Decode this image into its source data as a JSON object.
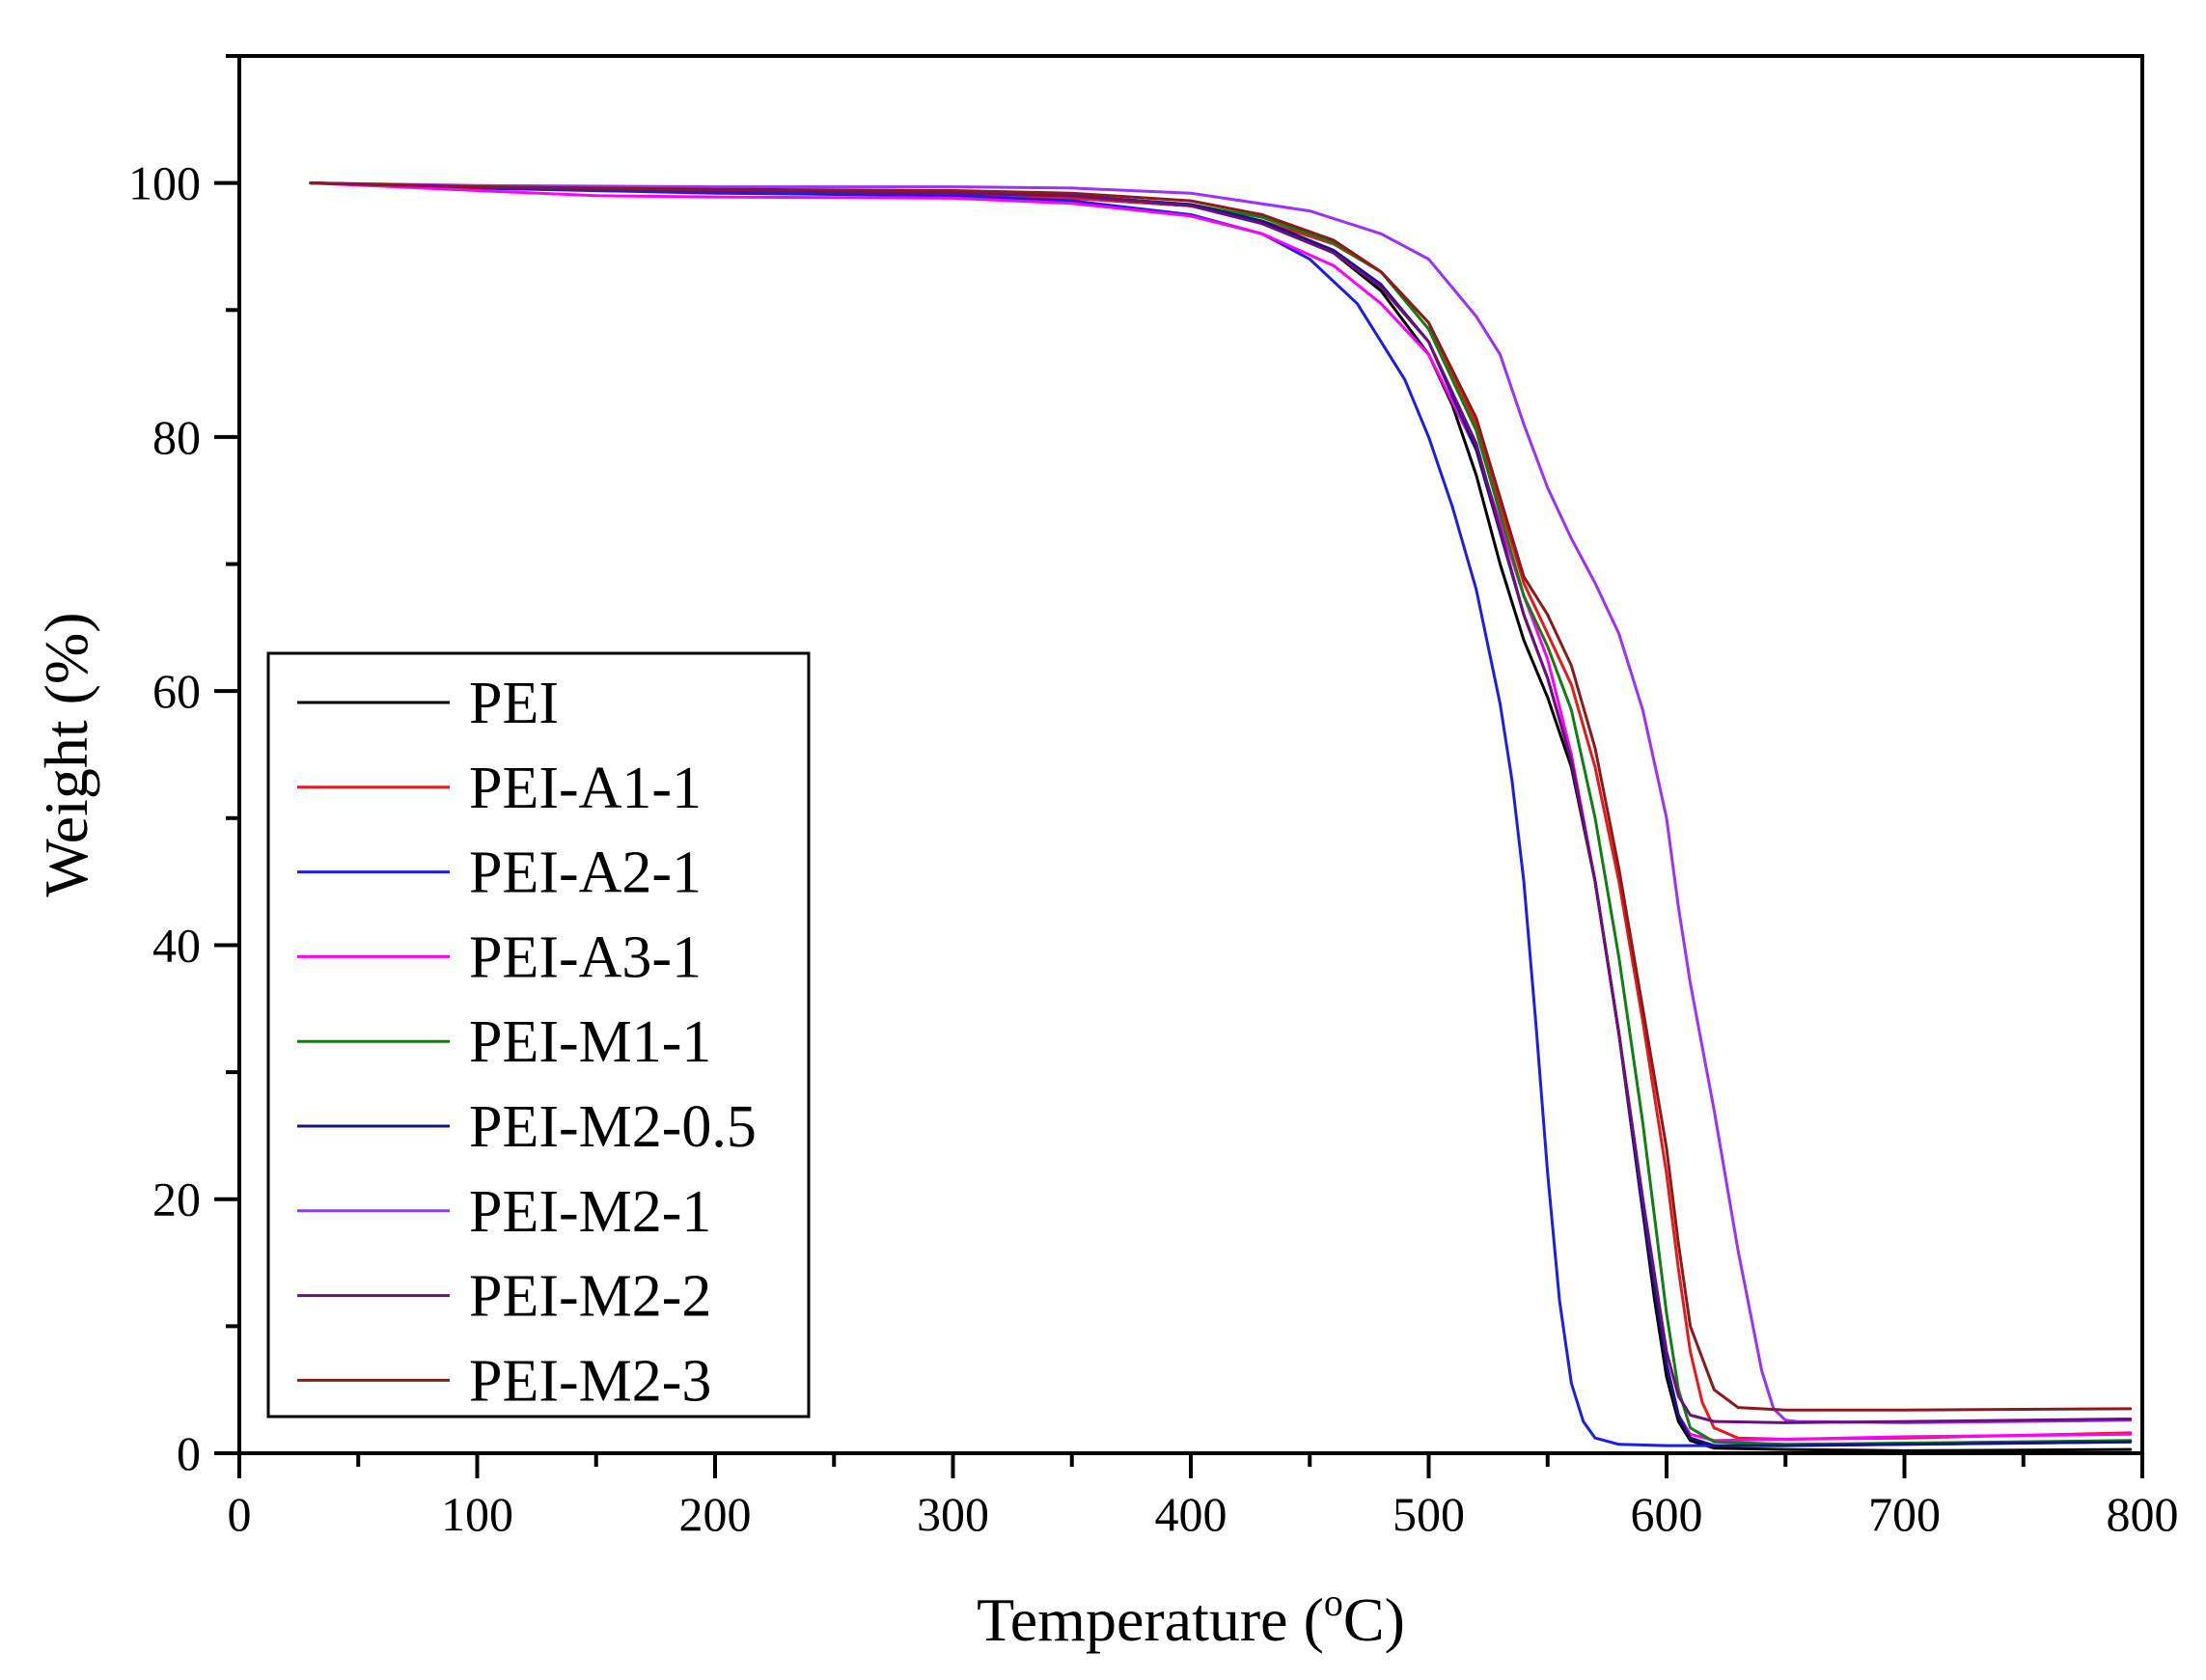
{
  "chart_data": {
    "type": "line",
    "title": "",
    "xlabel": "Temperature (",
    "xlabel_sup": "o",
    "xlabel_unit": "C)",
    "ylabel": "Weight (%)",
    "xlim": [
      0,
      800
    ],
    "ylim": [
      0,
      110
    ],
    "xticks": [
      0,
      100,
      200,
      300,
      400,
      500,
      600,
      700,
      800
    ],
    "xtick_labels": [
      "0",
      "100",
      "200",
      "300",
      "400",
      "500",
      "600",
      "700",
      "800"
    ],
    "yticks": [
      0,
      20,
      40,
      60,
      80,
      100
    ],
    "ytick_labels": [
      "0",
      "20",
      "40",
      "60",
      "80",
      "100"
    ],
    "grid": false,
    "legend_position": "lower-left",
    "series": [
      {
        "name": "PEI",
        "color": "#000000",
        "x": [
          30,
          100,
          200,
          300,
          350,
          400,
          430,
          460,
          480,
          500,
          510,
          520,
          530,
          540,
          550,
          560,
          570,
          580,
          590,
          595,
          600,
          605,
          610,
          620,
          650,
          700,
          795
        ],
        "y": [
          100,
          99.7,
          99.3,
          99.0,
          98.8,
          98.2,
          96.9,
          94.5,
          91.5,
          86.5,
          82.5,
          77.0,
          70.0,
          64.0,
          59.5,
          54.0,
          45.0,
          33.0,
          19.0,
          12.0,
          6.0,
          2.5,
          1.0,
          0.4,
          0.3,
          0.2,
          0.3
        ]
      },
      {
        "name": "PEI-A1-1",
        "color": "#e8191b",
        "x": [
          30,
          100,
          200,
          300,
          350,
          400,
          430,
          460,
          480,
          500,
          520,
          540,
          550,
          560,
          570,
          580,
          590,
          600,
          605,
          610,
          615,
          620,
          630,
          650,
          700,
          795
        ],
        "y": [
          100,
          99.6,
          99.3,
          99.0,
          98.8,
          98.2,
          97.0,
          95.2,
          93.0,
          89.0,
          81.0,
          68.5,
          64.5,
          60.5,
          54.0,
          45.0,
          34.0,
          22.0,
          14.5,
          8.0,
          4.0,
          2.0,
          1.2,
          1.1,
          1.2,
          1.6
        ]
      },
      {
        "name": "PEI-A2-1",
        "color": "#1a1ee6",
        "x": [
          30,
          100,
          200,
          300,
          350,
          400,
          430,
          450,
          470,
          490,
          500,
          510,
          520,
          530,
          535,
          540,
          545,
          550,
          555,
          560,
          565,
          570,
          580,
          600,
          650,
          700,
          795
        ],
        "y": [
          100,
          99.6,
          99.2,
          99.0,
          98.6,
          97.5,
          96.0,
          94.0,
          90.5,
          84.5,
          80.0,
          74.5,
          68.0,
          59.0,
          53.0,
          45.0,
          34.0,
          22.0,
          12.0,
          5.5,
          2.5,
          1.2,
          0.7,
          0.6,
          0.6,
          0.7,
          0.9
        ]
      },
      {
        "name": "PEI-A3-1",
        "color": "#ff00ff",
        "x": [
          30,
          100,
          150,
          200,
          300,
          350,
          400,
          430,
          460,
          480,
          500,
          520,
          540,
          550,
          560,
          570,
          580,
          590,
          600,
          605,
          610,
          620,
          650,
          700,
          795
        ],
        "y": [
          100,
          99.4,
          99.0,
          98.9,
          98.8,
          98.4,
          97.4,
          96.0,
          93.5,
          90.5,
          86.5,
          79.0,
          67.5,
          62.5,
          55.0,
          45.0,
          33.0,
          20.0,
          7.0,
          3.0,
          1.5,
          1.0,
          1.1,
          1.3,
          1.5
        ]
      },
      {
        "name": "PEI-M1-1",
        "color": "#0f7f12",
        "x": [
          30,
          100,
          200,
          300,
          350,
          400,
          430,
          460,
          480,
          500,
          520,
          540,
          550,
          560,
          570,
          580,
          590,
          600,
          605,
          610,
          620,
          650,
          700,
          795
        ],
        "y": [
          100,
          99.7,
          99.4,
          99.2,
          99.0,
          98.3,
          97.3,
          95.3,
          93.0,
          88.5,
          80.5,
          67.5,
          63.5,
          58.5,
          50.0,
          39.0,
          26.0,
          11.0,
          5.0,
          2.0,
          0.9,
          0.7,
          0.8,
          1.0
        ]
      },
      {
        "name": "PEI-M2-0.5",
        "color": "#141488",
        "x": [
          30,
          100,
          200,
          300,
          350,
          400,
          430,
          460,
          480,
          500,
          520,
          540,
          550,
          560,
          570,
          580,
          590,
          600,
          605,
          610,
          620,
          650,
          700,
          795
        ],
        "y": [
          100,
          99.7,
          99.4,
          99.2,
          99.0,
          98.3,
          97.0,
          94.7,
          92.0,
          87.5,
          79.0,
          66.0,
          61.0,
          54.5,
          45.0,
          33.0,
          19.0,
          7.0,
          3.0,
          1.2,
          0.6,
          0.6,
          0.7,
          0.9
        ]
      },
      {
        "name": "PEI-M2-1",
        "color": "#9b30ff",
        "x": [
          30,
          100,
          200,
          300,
          350,
          400,
          450,
          480,
          500,
          520,
          530,
          540,
          550,
          560,
          570,
          580,
          590,
          600,
          605,
          610,
          620,
          630,
          640,
          645,
          650,
          655,
          700,
          795
        ],
        "y": [
          100,
          99.8,
          99.7,
          99.7,
          99.6,
          99.2,
          97.8,
          96.0,
          94.0,
          89.5,
          86.5,
          81.0,
          76.0,
          72.0,
          68.5,
          64.5,
          58.5,
          50.0,
          43.0,
          37.0,
          27.0,
          16.0,
          6.5,
          3.5,
          2.6,
          2.5,
          2.4,
          2.6
        ]
      },
      {
        "name": "PEI-M2-2",
        "color": "#6b0f7d",
        "x": [
          30,
          100,
          200,
          300,
          350,
          400,
          430,
          460,
          480,
          500,
          520,
          540,
          550,
          560,
          570,
          580,
          590,
          600,
          605,
          610,
          620,
          650,
          700,
          795
        ],
        "y": [
          100,
          99.7,
          99.4,
          99.2,
          99.0,
          98.2,
          96.8,
          94.5,
          91.8,
          87.5,
          79.5,
          66.0,
          61.0,
          54.5,
          45.0,
          33.0,
          20.0,
          8.0,
          4.5,
          3.0,
          2.5,
          2.4,
          2.5,
          2.7
        ]
      },
      {
        "name": "PEI-M2-3",
        "color": "#8b1a1a",
        "x": [
          30,
          100,
          200,
          300,
          350,
          400,
          430,
          460,
          480,
          500,
          520,
          540,
          550,
          560,
          570,
          580,
          590,
          600,
          605,
          610,
          620,
          630,
          650,
          700,
          795
        ],
        "y": [
          100,
          99.7,
          99.5,
          99.4,
          99.2,
          98.6,
          97.5,
          95.5,
          93.0,
          89.0,
          81.5,
          69.0,
          66.0,
          62.0,
          55.5,
          46.0,
          35.0,
          24.0,
          16.5,
          10.0,
          5.0,
          3.6,
          3.4,
          3.4,
          3.5
        ]
      }
    ]
  }
}
